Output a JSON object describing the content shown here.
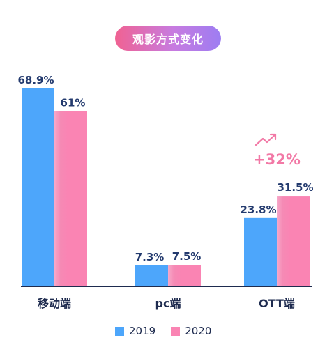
{
  "title": "观影方式变化",
  "colors": {
    "2019": "#4da6fb",
    "2020": "#fa84b3",
    "axis": "#1e2b4f",
    "annotation": "#f279a6"
  },
  "chart_data": {
    "type": "bar",
    "categories": [
      "移动端",
      "pc端",
      "OTT端"
    ],
    "ylim": [
      0,
      80
    ],
    "series": [
      {
        "name": "2019",
        "values": [
          68.9,
          7.3,
          23.8
        ],
        "labels": [
          "68.9%",
          "7.3%",
          "23.8%"
        ]
      },
      {
        "name": "2020",
        "values": [
          61,
          7.5,
          31.5
        ],
        "labels": [
          "61%",
          "7.5%",
          "31.5%"
        ]
      }
    ],
    "annotation": {
      "category": "OTT端",
      "text": "+32%",
      "icon": "trend-up-icon"
    },
    "legend": {
      "position": "bottom",
      "items": [
        "2019",
        "2020"
      ]
    }
  }
}
